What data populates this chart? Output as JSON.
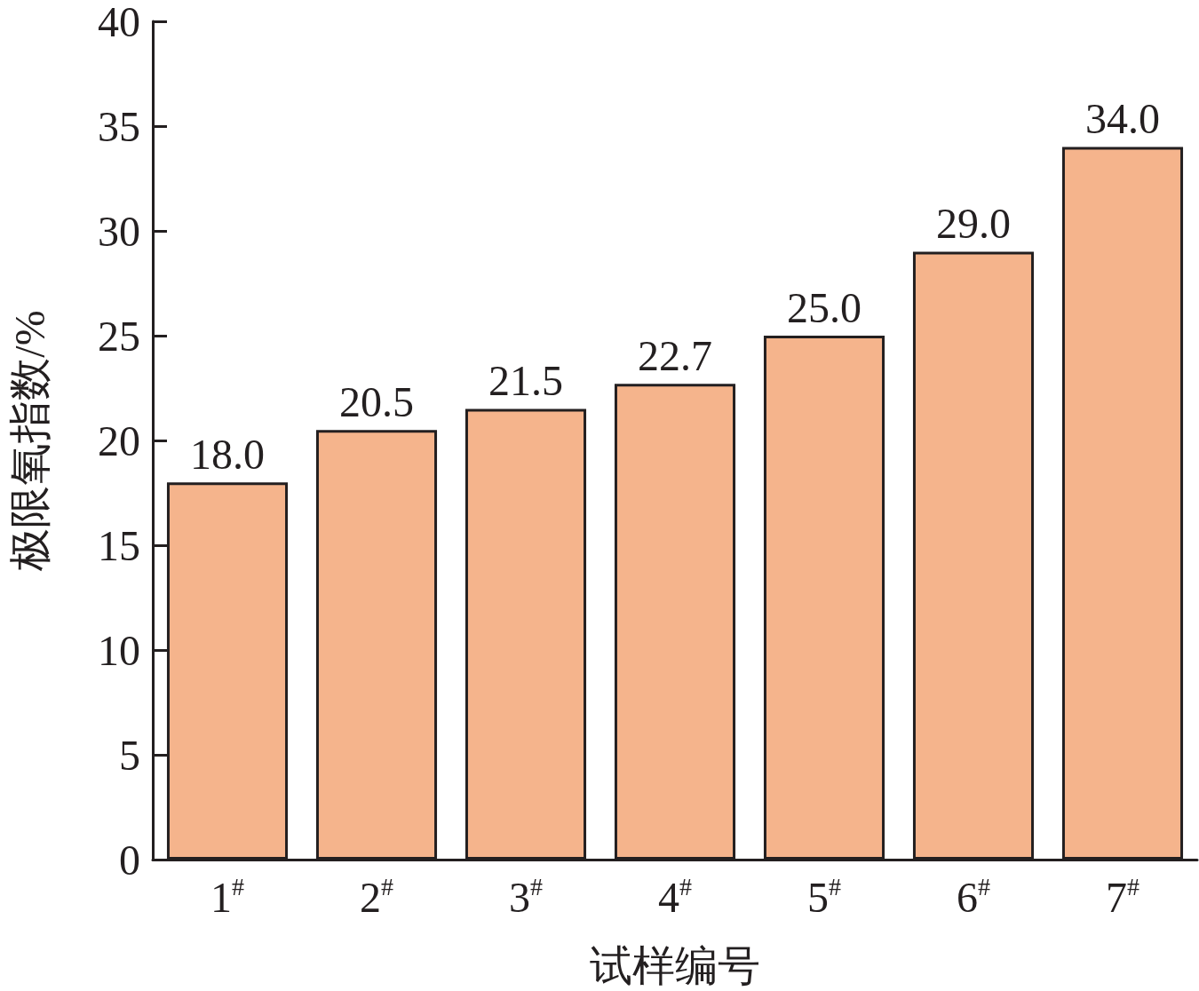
{
  "chart_data": {
    "type": "bar",
    "xlabel": "试样编号",
    "ylabel": "极限氧指数/%",
    "categories": [
      "1$^{#}$",
      "2$^{#}$",
      "3$^{#}$",
      "4$^{#}$",
      "5$^{#}$",
      "6$^{#}$",
      "7$^{#}$"
    ],
    "values": [
      18.0,
      20.5,
      21.5,
      22.7,
      25.0,
      29.0,
      34.0
    ],
    "value_labels": [
      "18.0",
      "20.5",
      "21.5",
      "22.7",
      "25.0",
      "29.0",
      "34.0"
    ],
    "color": "#f5b48c",
    "ylim": [
      0,
      40
    ],
    "yticks": [
      0,
      5,
      10,
      15,
      20,
      25,
      30,
      35,
      40
    ],
    "grid": false
  }
}
